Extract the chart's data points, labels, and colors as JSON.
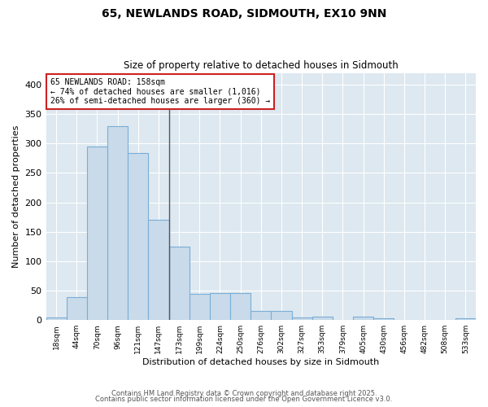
{
  "title": "65, NEWLANDS ROAD, SIDMOUTH, EX10 9NN",
  "subtitle": "Size of property relative to detached houses in Sidmouth",
  "xlabel": "Distribution of detached houses by size in Sidmouth",
  "ylabel": "Number of detached properties",
  "categories": [
    "18sqm",
    "44sqm",
    "70sqm",
    "96sqm",
    "121sqm",
    "147sqm",
    "173sqm",
    "199sqm",
    "224sqm",
    "250sqm",
    "276sqm",
    "302sqm",
    "327sqm",
    "353sqm",
    "379sqm",
    "405sqm",
    "430sqm",
    "456sqm",
    "482sqm",
    "508sqm",
    "533sqm"
  ],
  "values": [
    4,
    39,
    295,
    330,
    284,
    170,
    125,
    44,
    46,
    46,
    15,
    15,
    4,
    6,
    0,
    6,
    3,
    0,
    0,
    0,
    3
  ],
  "bar_color": "#c9daea",
  "bar_edge_color": "#7aaed6",
  "vline_position": 5.5,
  "vline_color": "#555555",
  "annotation_title": "65 NEWLANDS ROAD: 158sqm",
  "annotation_line1": "← 74% of detached houses are smaller (1,016)",
  "annotation_line2": "26% of semi-detached houses are larger (360) →",
  "annotation_box_color": "#ffffff",
  "annotation_box_edge": "#cc2222",
  "ylim": [
    0,
    420
  ],
  "yticks": [
    0,
    50,
    100,
    150,
    200,
    250,
    300,
    350,
    400
  ],
  "fig_bg_color": "#ffffff",
  "plot_bg_color": "#dde8f0",
  "footer_line1": "Contains HM Land Registry data © Crown copyright and database right 2025.",
  "footer_line2": "Contains public sector information licensed under the Open Government Licence v3.0."
}
